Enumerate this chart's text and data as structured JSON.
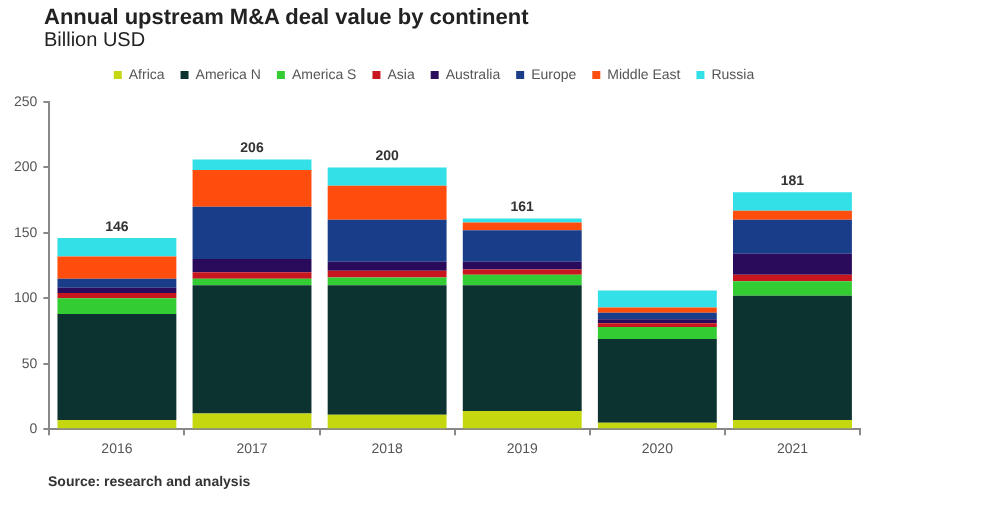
{
  "chart_data": {
    "type": "bar",
    "title": "Annual upstream M&A deal value by continent",
    "subtitle": "Billion USD",
    "categories": [
      "2016",
      "2017",
      "2018",
      "2019",
      "2020",
      "2021"
    ],
    "stacked": true,
    "series": [
      {
        "name": "Africa",
        "color": "#c5d80f",
        "values": [
          7,
          12,
          11,
          14,
          5,
          7
        ]
      },
      {
        "name": "America N",
        "color": "#0d3330",
        "values": [
          81,
          98,
          99,
          96,
          64,
          95
        ]
      },
      {
        "name": "America S",
        "color": "#33cc33",
        "values": [
          12,
          5,
          6,
          8,
          9,
          11
        ]
      },
      {
        "name": "Asia",
        "color": "#c8161e",
        "values": [
          4,
          5,
          5,
          4,
          3,
          5
        ]
      },
      {
        "name": "Australia",
        "color": "#2a0a5a",
        "values": [
          4,
          10,
          7,
          6,
          3,
          16
        ]
      },
      {
        "name": "Europe",
        "color": "#1a3d8a",
        "values": [
          7,
          40,
          32,
          24,
          5,
          26
        ]
      },
      {
        "name": "Middle East",
        "color": "#ff4d0d",
        "values": [
          17,
          28,
          26,
          6,
          4,
          7
        ]
      },
      {
        "name": "Russia",
        "color": "#33e0e8",
        "values": [
          14,
          8,
          14,
          3,
          13,
          14
        ]
      }
    ],
    "totals": [
      "146",
      "206",
      "200",
      "161",
      null,
      "181"
    ],
    "ylim": [
      0,
      250
    ],
    "yticks": [
      0,
      50,
      100,
      150,
      200,
      250
    ],
    "grid": false,
    "legend": "top",
    "annotations": [
      "Source: research and analysis"
    ]
  }
}
